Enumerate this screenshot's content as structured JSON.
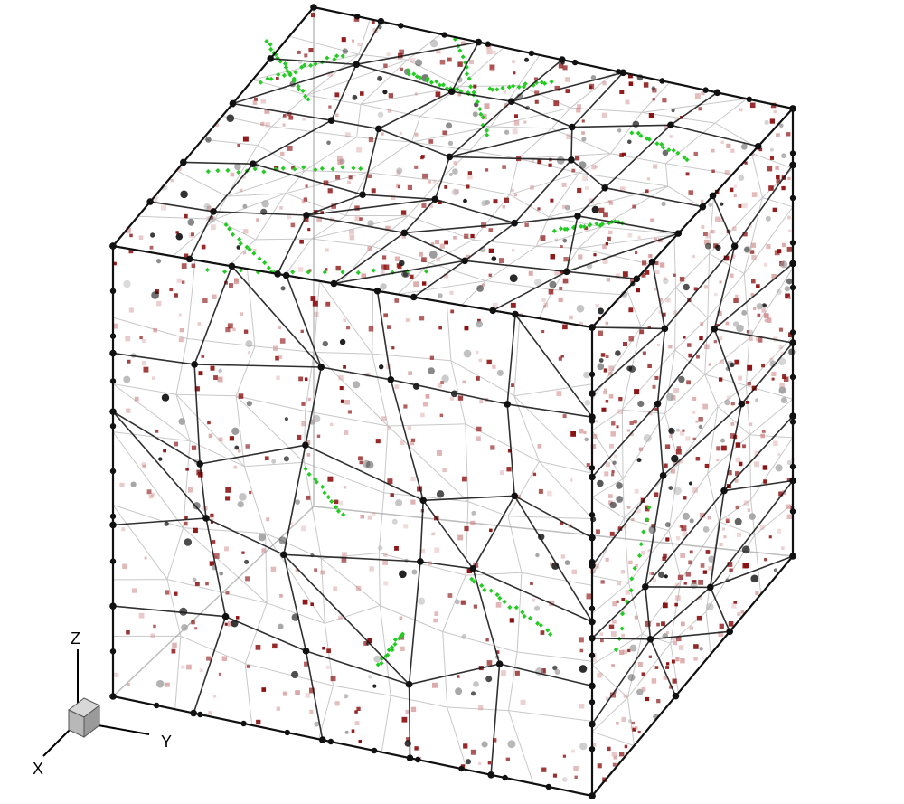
{
  "axes": {
    "x_label": "X",
    "y_label": "Y",
    "z_label": "Z"
  },
  "colors": {
    "background": "#ffffff",
    "cube_edge": "#111111",
    "grain_boundary": "#1a1a1a",
    "grain_boundary_back": "#9a9a9a",
    "dark_red_cubes": "#8b1010",
    "light_red_cubes": "#c87a7a",
    "green_diamonds": "#22cc22",
    "black_spheres": "#111111",
    "gray_spheres": "#a0a0a0",
    "triad_box": "#b0b0b0"
  },
  "icons": {
    "triad": "xyz-axis-triad-icon"
  }
}
